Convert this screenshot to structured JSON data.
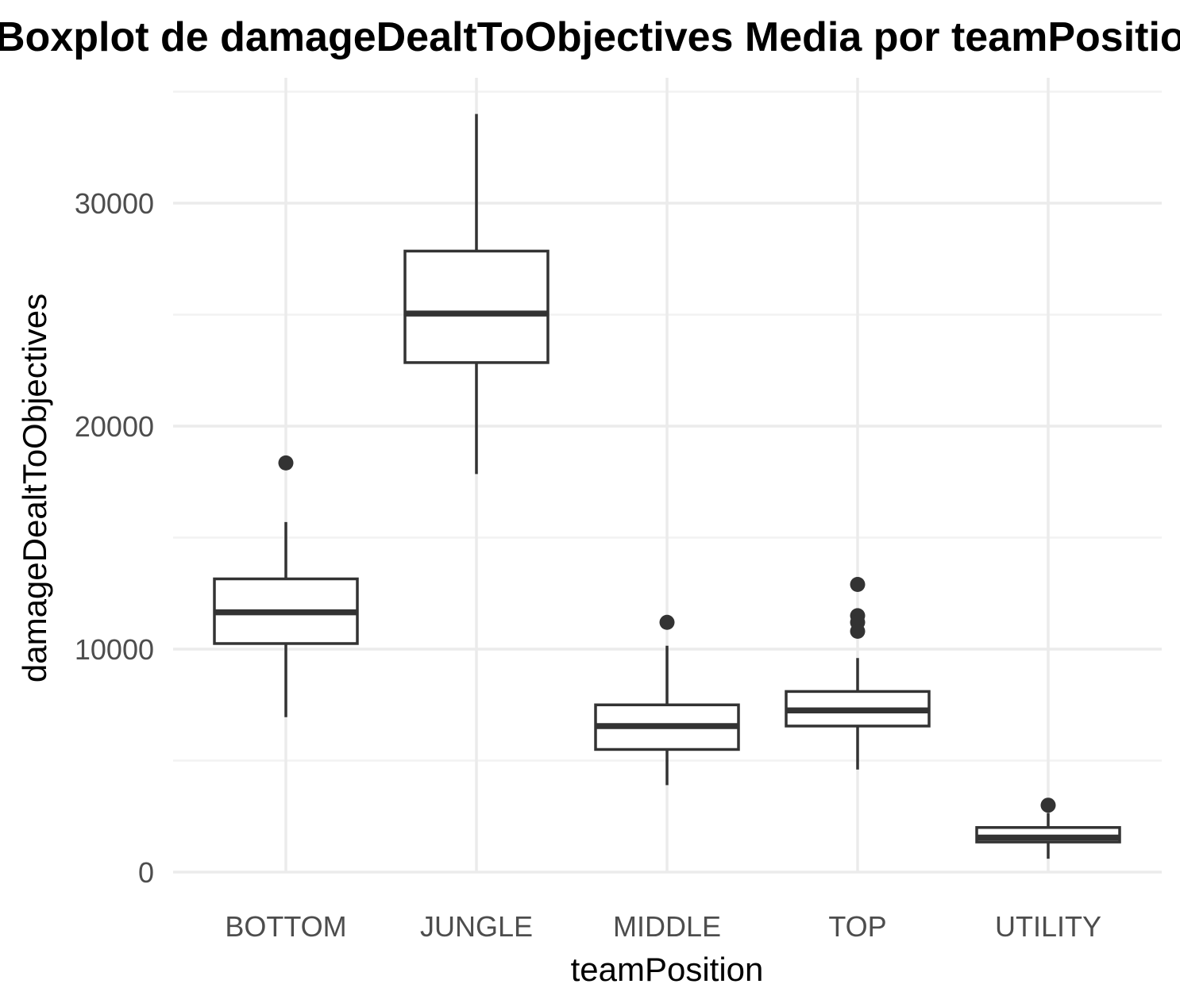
{
  "chart_data": {
    "type": "boxplot",
    "title": "Boxplot de damageDealtToObjectives Media por teamPosition",
    "xlabel": "teamPosition",
    "ylabel": "damageDealtToObjectives",
    "ylim": [
      -200,
      35200
    ],
    "yticks": [
      0,
      10000,
      20000,
      30000
    ],
    "yticks_labels": [
      "0",
      "10000",
      "20000",
      "30000"
    ],
    "grid": true,
    "legend": "none",
    "colors": {
      "box_stroke": "#333333",
      "box_fill": "#ffffff",
      "grid_major": "#ebebeb",
      "grid_minor": "#f2f2f2",
      "tick_text": "#4d4d4d"
    },
    "categories": [
      "BOTTOM",
      "JUNGLE",
      "MIDDLE",
      "TOP",
      "UTILITY"
    ],
    "boxes": [
      {
        "category": "BOTTOM",
        "whisker_low": 6950,
        "q1": 10250,
        "median": 11650,
        "q3": 13150,
        "whisker_high": 15700,
        "outliers": [
          18350
        ]
      },
      {
        "category": "JUNGLE",
        "whisker_low": 17850,
        "q1": 22850,
        "median": 25050,
        "q3": 27850,
        "whisker_high": 34000,
        "outliers": []
      },
      {
        "category": "MIDDLE",
        "whisker_low": 3900,
        "q1": 5500,
        "median": 6550,
        "q3": 7500,
        "whisker_high": 10150,
        "outliers": [
          11200
        ]
      },
      {
        "category": "TOP",
        "whisker_low": 4600,
        "q1": 6550,
        "median": 7250,
        "q3": 8100,
        "whisker_high": 9600,
        "outliers": [
          12900,
          11500,
          11200,
          10800
        ]
      },
      {
        "category": "UTILITY",
        "whisker_low": 600,
        "q1": 1350,
        "median": 1550,
        "q3": 2000,
        "whisker_high": 2650,
        "outliers": [
          3000
        ]
      }
    ]
  }
}
